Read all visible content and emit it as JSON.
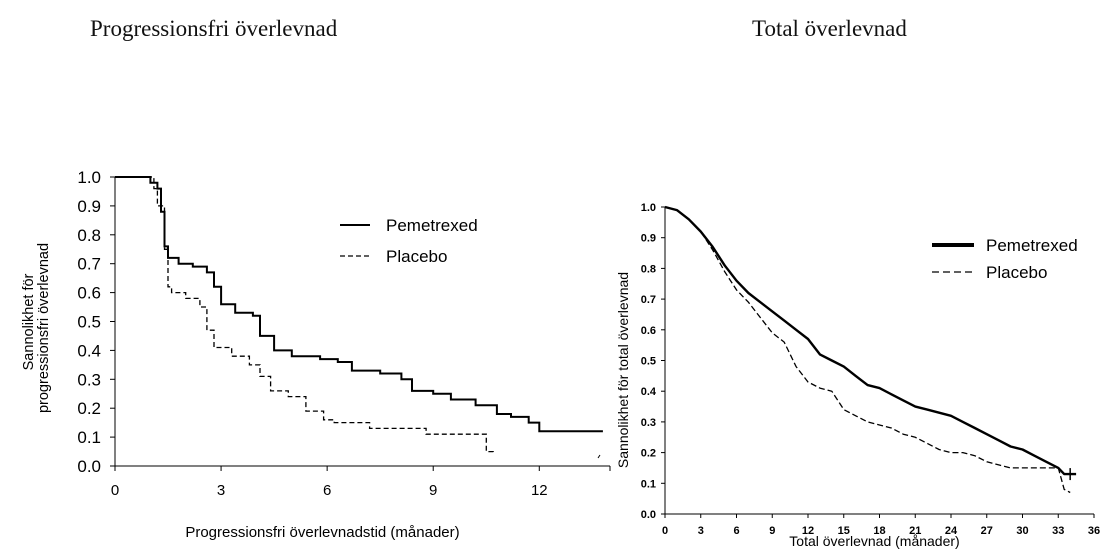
{
  "chart_data": [
    {
      "type": "line",
      "title": "Progressionsfri överlevnad",
      "xlabel": "Progressionsfri överlevnadstid (månader)",
      "ylabel_lines": [
        "Sannolikhet för",
        "progressionsfri överlevnad"
      ],
      "xlim": [
        0,
        14
      ],
      "ylim": [
        0,
        1
      ],
      "x_ticks": [
        0,
        3,
        6,
        9,
        12
      ],
      "y_ticks": [
        0.0,
        0.1,
        0.2,
        0.3,
        0.4,
        0.5,
        0.6,
        0.7,
        0.8,
        0.9,
        1.0
      ],
      "legend_position": "top-right",
      "series": [
        {
          "name": "Pemetrexed",
          "line_style": "solid",
          "color": "#000000",
          "points": [
            [
              0,
              1.0
            ],
            [
              0.8,
              1.0
            ],
            [
              1.0,
              0.98
            ],
            [
              1.2,
              0.96
            ],
            [
              1.3,
              0.88
            ],
            [
              1.4,
              0.76
            ],
            [
              1.5,
              0.72
            ],
            [
              1.8,
              0.7
            ],
            [
              2.2,
              0.69
            ],
            [
              2.6,
              0.67
            ],
            [
              2.8,
              0.62
            ],
            [
              3.0,
              0.56
            ],
            [
              3.4,
              0.53
            ],
            [
              3.9,
              0.52
            ],
            [
              4.1,
              0.45
            ],
            [
              4.5,
              0.4
            ],
            [
              5.0,
              0.38
            ],
            [
              5.8,
              0.37
            ],
            [
              6.3,
              0.36
            ],
            [
              6.7,
              0.33
            ],
            [
              7.5,
              0.32
            ],
            [
              8.1,
              0.3
            ],
            [
              8.4,
              0.26
            ],
            [
              9.0,
              0.25
            ],
            [
              9.5,
              0.23
            ],
            [
              10.2,
              0.21
            ],
            [
              10.8,
              0.18
            ],
            [
              11.2,
              0.17
            ],
            [
              11.7,
              0.15
            ],
            [
              12.0,
              0.12
            ],
            [
              13.8,
              0.12
            ]
          ]
        },
        {
          "name": "Placebo",
          "line_style": "dashed",
          "color": "#000000",
          "points": [
            [
              0,
              1.0
            ],
            [
              0.8,
              1.0
            ],
            [
              1.1,
              0.96
            ],
            [
              1.2,
              0.9
            ],
            [
              1.4,
              0.75
            ],
            [
              1.5,
              0.62
            ],
            [
              1.6,
              0.6
            ],
            [
              2.0,
              0.58
            ],
            [
              2.4,
              0.55
            ],
            [
              2.6,
              0.47
            ],
            [
              2.8,
              0.41
            ],
            [
              3.3,
              0.38
            ],
            [
              3.8,
              0.35
            ],
            [
              4.1,
              0.31
            ],
            [
              4.4,
              0.26
            ],
            [
              4.9,
              0.24
            ],
            [
              5.4,
              0.19
            ],
            [
              5.9,
              0.16
            ],
            [
              6.2,
              0.15
            ],
            [
              6.8,
              0.15
            ],
            [
              7.2,
              0.13
            ],
            [
              8.5,
              0.13
            ],
            [
              8.8,
              0.11
            ],
            [
              10.2,
              0.11
            ],
            [
              10.5,
              0.05
            ],
            [
              10.7,
              0.04
            ]
          ]
        }
      ]
    },
    {
      "type": "line",
      "title": "Total överlevnad",
      "xlabel": "Total överlevnad (månader)",
      "ylabel": "Sannolikhet för total överlevnad",
      "xlim": [
        0,
        36
      ],
      "ylim": [
        0,
        1
      ],
      "x_ticks": [
        0,
        3,
        6,
        9,
        12,
        15,
        18,
        21,
        24,
        27,
        30,
        33,
        36
      ],
      "y_ticks": [
        0.0,
        0.1,
        0.2,
        0.3,
        0.4,
        0.5,
        0.6,
        0.7,
        0.8,
        0.9,
        1.0
      ],
      "legend_position": "top-right",
      "series": [
        {
          "name": "Pemetrexed",
          "line_style": "solid-thick",
          "color": "#000000",
          "points": [
            [
              0,
              1.0
            ],
            [
              1,
              0.99
            ],
            [
              2,
              0.96
            ],
            [
              3,
              0.92
            ],
            [
              4,
              0.87
            ],
            [
              5,
              0.81
            ],
            [
              6,
              0.76
            ],
            [
              7,
              0.72
            ],
            [
              8,
              0.69
            ],
            [
              9,
              0.66
            ],
            [
              10,
              0.63
            ],
            [
              11,
              0.6
            ],
            [
              12,
              0.57
            ],
            [
              13,
              0.52
            ],
            [
              14,
              0.5
            ],
            [
              15,
              0.48
            ],
            [
              16,
              0.45
            ],
            [
              17,
              0.42
            ],
            [
              18,
              0.41
            ],
            [
              19,
              0.39
            ],
            [
              20,
              0.37
            ],
            [
              21,
              0.35
            ],
            [
              22,
              0.34
            ],
            [
              23,
              0.33
            ],
            [
              24,
              0.32
            ],
            [
              25,
              0.3
            ],
            [
              26,
              0.28
            ],
            [
              27,
              0.26
            ],
            [
              28,
              0.24
            ],
            [
              29,
              0.22
            ],
            [
              30,
              0.21
            ],
            [
              31,
              0.19
            ],
            [
              32,
              0.17
            ],
            [
              33,
              0.15
            ],
            [
              33.5,
              0.13
            ],
            [
              34.5,
              0.13
            ]
          ]
        },
        {
          "name": "Placebo",
          "line_style": "dashed",
          "color": "#000000",
          "points": [
            [
              0,
              1.0
            ],
            [
              1,
              0.99
            ],
            [
              2,
              0.96
            ],
            [
              3,
              0.92
            ],
            [
              4,
              0.86
            ],
            [
              5,
              0.79
            ],
            [
              6,
              0.73
            ],
            [
              7,
              0.69
            ],
            [
              8,
              0.64
            ],
            [
              9,
              0.59
            ],
            [
              10,
              0.56
            ],
            [
              11,
              0.48
            ],
            [
              12,
              0.43
            ],
            [
              13,
              0.41
            ],
            [
              14,
              0.4
            ],
            [
              15,
              0.34
            ],
            [
              16,
              0.32
            ],
            [
              17,
              0.3
            ],
            [
              18,
              0.29
            ],
            [
              19,
              0.28
            ],
            [
              20,
              0.26
            ],
            [
              21,
              0.25
            ],
            [
              22,
              0.23
            ],
            [
              23,
              0.21
            ],
            [
              24,
              0.2
            ],
            [
              25,
              0.2
            ],
            [
              26,
              0.19
            ],
            [
              27,
              0.17
            ],
            [
              28,
              0.16
            ],
            [
              29,
              0.15
            ],
            [
              30,
              0.15
            ],
            [
              31,
              0.15
            ],
            [
              32,
              0.15
            ],
            [
              33,
              0.15
            ],
            [
              33.5,
              0.08
            ],
            [
              34,
              0.07
            ]
          ]
        }
      ]
    }
  ]
}
